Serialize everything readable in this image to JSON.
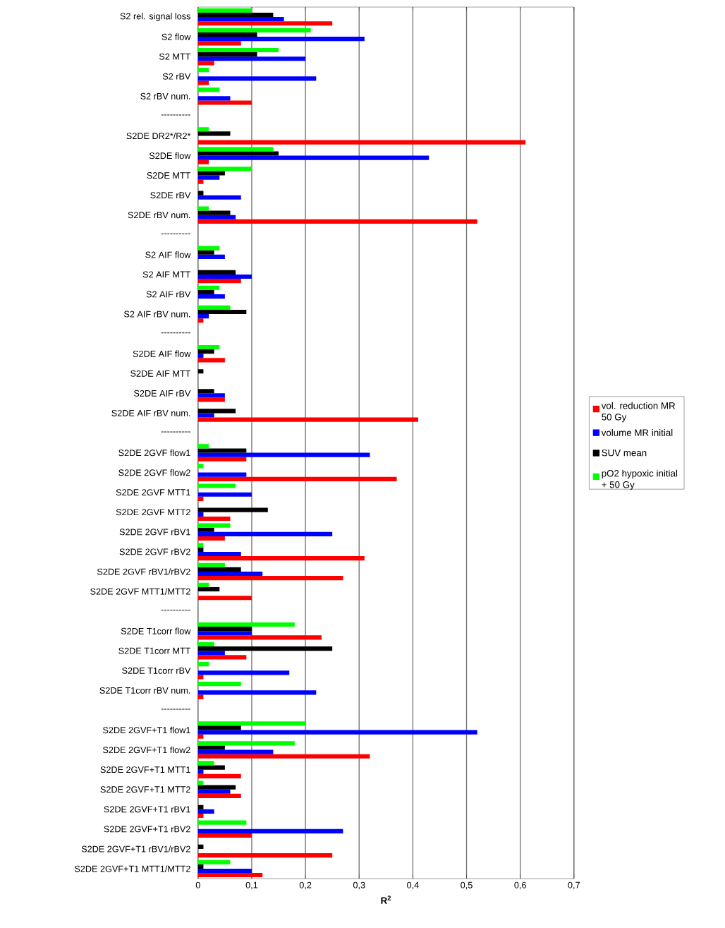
{
  "chart_data": {
    "type": "bar",
    "orientation": "horizontal",
    "xlabel": "R$^{2}$",
    "categories": [
      "S2 rel. signal loss",
      "S2 flow",
      "S2 MTT",
      "S2 rBV",
      "S2 rBV num.",
      "----------",
      "S2DE DR2*/R2*",
      "S2DE flow",
      "S2DE MTT",
      "S2DE rBV",
      "S2DE rBV num.",
      "----------",
      "S2 AIF flow",
      "S2 AIF MTT",
      "S2 AIF rBV",
      "S2 AIF rBV num.",
      "----------",
      "S2DE AIF flow",
      "S2DE AIF MTT",
      "S2DE AIF rBV",
      "S2DE AIF rBV num.",
      "----------",
      "S2DE 2GVF flow1",
      "S2DE 2GVF flow2",
      "S2DE 2GVF MTT1",
      "S2DE 2GVF MTT2",
      "S2DE 2GVF rBV1",
      "S2DE 2GVF rBV2",
      "S2DE 2GVF rBV1/rBV2",
      "S2DE 2GVF MTT1/MTT2",
      "----------",
      "S2DE T1corr flow",
      "S2DE T1corr MTT",
      "S2DE T1corr rBV",
      "S2DE T1corr rBV num.",
      "----------",
      "S2DE 2GVF+T1 flow1",
      "S2DE 2GVF+T1 flow2",
      "S2DE 2GVF+T1 MTT1",
      "S2DE 2GVF+T1 MTT2",
      "S2DE 2GVF+T1 rBV1",
      "S2DE 2GVF+T1 rBV2",
      "S2DE 2GVF+T1 rBV1/rBV2",
      "S2DE 2GVF+T1 MTT1/MTT2"
    ],
    "series": [
      {
        "name": "vol. reduction MR 50 Gy",
        "color": "#ff0000",
        "values": [
          0.25,
          0.08,
          0.03,
          0.02,
          0.1,
          null,
          0.61,
          0.02,
          0.01,
          null,
          0.52,
          null,
          null,
          0.08,
          null,
          0.01,
          null,
          0.05,
          null,
          0.05,
          0.41,
          null,
          0.09,
          0.37,
          0.01,
          0.06,
          0.05,
          0.31,
          0.27,
          0.1,
          null,
          0.23,
          0.09,
          0.01,
          0.01,
          null,
          0.01,
          0.32,
          0.08,
          0.08,
          0.01,
          0.1,
          0.25,
          0.12
        ]
      },
      {
        "name": "volume MR initial",
        "color": "#0000ff",
        "values": [
          0.16,
          0.31,
          0.2,
          0.22,
          0.06,
          null,
          null,
          0.43,
          0.04,
          0.08,
          0.07,
          null,
          0.05,
          0.1,
          0.05,
          0.02,
          null,
          0.01,
          null,
          0.05,
          0.03,
          null,
          0.32,
          0.09,
          0.1,
          0.01,
          0.25,
          0.08,
          0.12,
          null,
          null,
          0.1,
          0.05,
          0.17,
          0.22,
          null,
          0.52,
          0.14,
          0.01,
          0.06,
          0.03,
          0.27,
          null,
          0.1
        ]
      },
      {
        "name": "SUV mean",
        "color": "#000000",
        "values": [
          0.14,
          0.11,
          0.11,
          null,
          null,
          null,
          0.06,
          0.15,
          0.05,
          0.01,
          0.06,
          null,
          0.03,
          0.07,
          0.03,
          0.09,
          null,
          0.03,
          0.01,
          0.03,
          0.07,
          null,
          0.09,
          null,
          null,
          0.13,
          0.03,
          0.01,
          0.08,
          0.04,
          null,
          0.1,
          0.25,
          null,
          null,
          null,
          0.08,
          0.05,
          0.05,
          0.07,
          0.01,
          null,
          0.01,
          0.01
        ]
      },
      {
        "name": "pO2 hypoxic initial + 50 Gy",
        "color": "#00ff00",
        "values": [
          0.1,
          0.21,
          0.15,
          0.02,
          0.04,
          null,
          0.02,
          0.14,
          0.1,
          null,
          0.02,
          null,
          0.04,
          null,
          0.04,
          0.06,
          null,
          0.04,
          null,
          null,
          null,
          null,
          0.02,
          0.01,
          0.07,
          null,
          0.06,
          0.01,
          0.05,
          0.02,
          null,
          0.18,
          0.03,
          0.02,
          0.08,
          null,
          0.2,
          0.18,
          0.03,
          0.01,
          null,
          0.09,
          null,
          0.06
        ]
      }
    ],
    "xlim": [
      0,
      0.7
    ],
    "xticks": [
      0,
      {
        "value": 0.1,
        "label": "0,1"
      },
      {
        "value": 0.2,
        "label": "0,2"
      },
      {
        "value": 0.3,
        "label": "0,3"
      },
      {
        "value": 0.4,
        "label": "0,4"
      },
      {
        "value": 0.5,
        "label": "0,5"
      },
      {
        "value": 0.6,
        "label": "0,6"
      },
      {
        "value": 0.7,
        "label": "0,7"
      }
    ],
    "grid": "x",
    "legend": "right"
  }
}
